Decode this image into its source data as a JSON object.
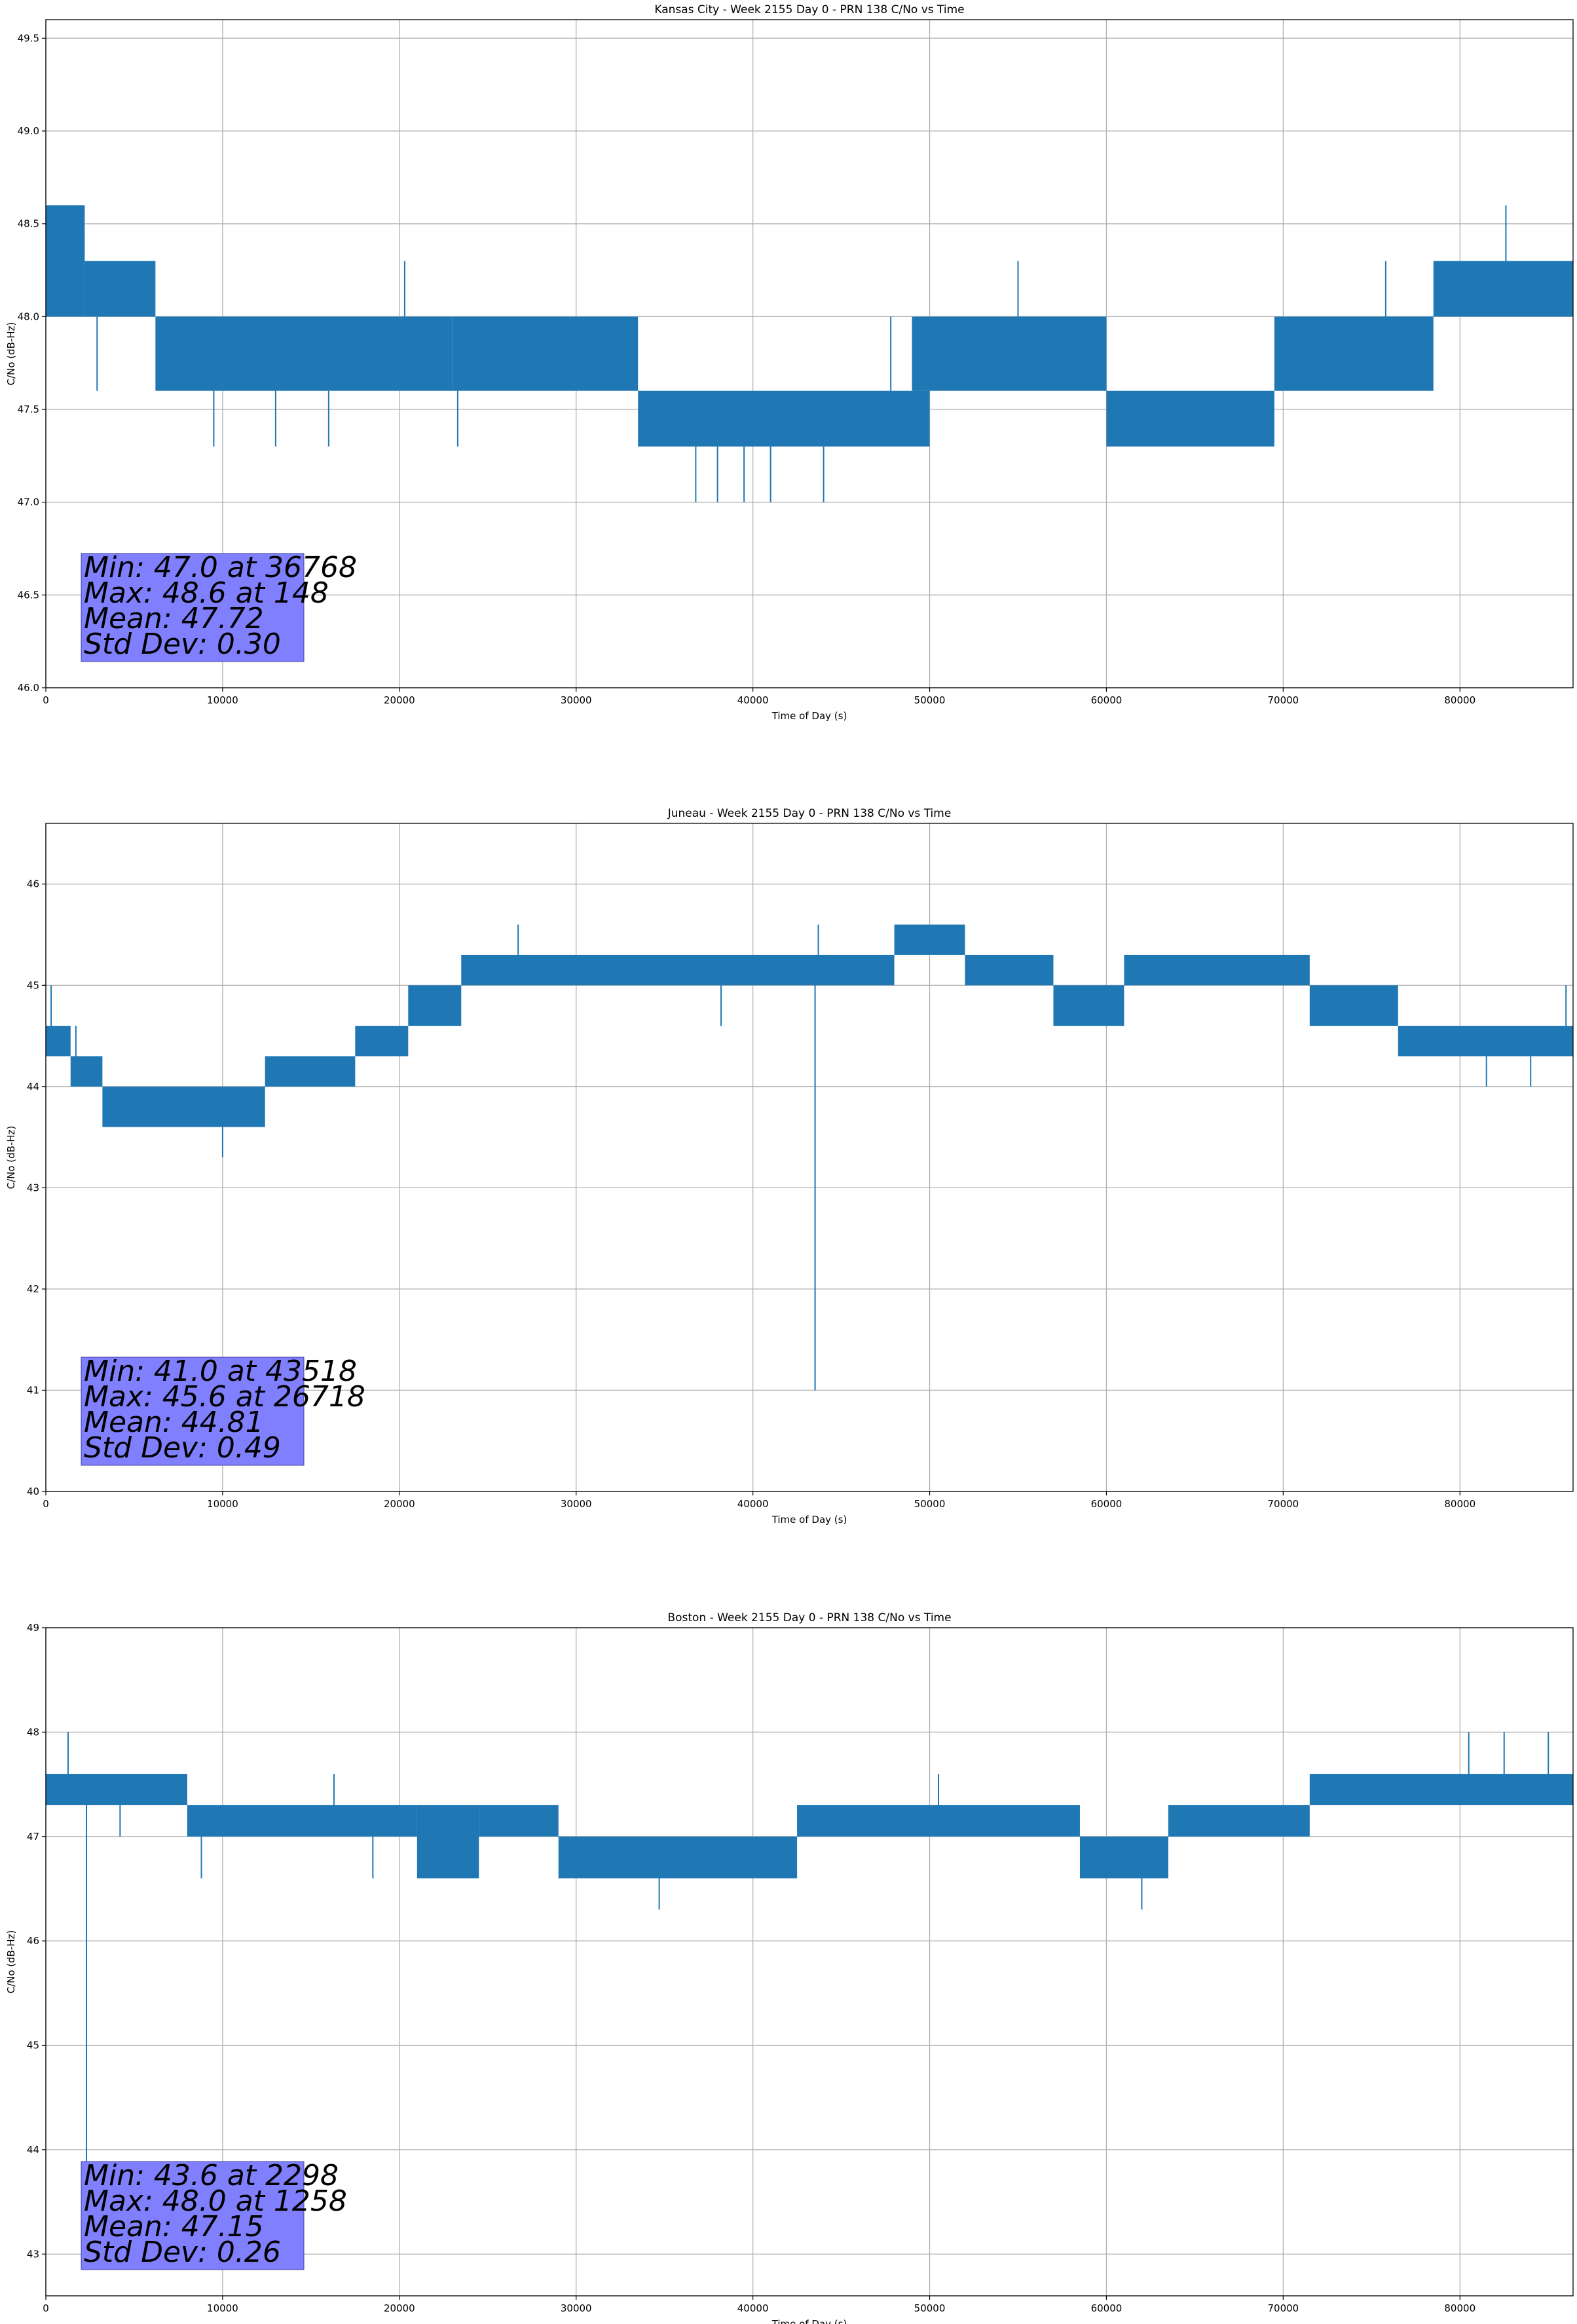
{
  "figure": {
    "colors": {
      "line": "#1f77b4",
      "stats_box": "#8080ff",
      "grid": "#b0b0b0",
      "background": "#ffffff"
    }
  },
  "chart_data": [
    {
      "type": "line",
      "title": "Kansas City - Week 2155 Day 0 - PRN 138 C/No vs Time",
      "xlabel": "Time of Day (s)",
      "ylabel": "C/No (dB-Hz)",
      "xlim": [
        0,
        86400
      ],
      "ylim": [
        46.0,
        49.6
      ],
      "xticks": [
        0,
        10000,
        20000,
        30000,
        40000,
        50000,
        60000,
        70000,
        80000
      ],
      "xtick_labels": [
        "0",
        "10000",
        "20000",
        "30000",
        "40000",
        "50000",
        "60000",
        "70000",
        "80000"
      ],
      "yticks": [
        46.0,
        46.5,
        47.0,
        47.5,
        48.0,
        48.5,
        49.0,
        49.5
      ],
      "ytick_labels": [
        "46.0",
        "46.5",
        "47.0",
        "47.5",
        "48.0",
        "48.5",
        "49.0",
        "49.5"
      ],
      "grid": true,
      "stats": [
        "Min: 47.0 at 36768",
        "Max: 48.6 at 148",
        "Mean: 47.72",
        "Std Dev: 0.30"
      ],
      "bands": [
        {
          "x": [
            0,
            2200
          ],
          "lo": 48.0,
          "hi": 48.6
        },
        {
          "x": [
            2200,
            6200
          ],
          "lo": 48.0,
          "hi": 48.3
        },
        {
          "x": [
            6200,
            23000
          ],
          "lo": 47.6,
          "hi": 48.0
        },
        {
          "x": [
            23000,
            33500
          ],
          "lo": 47.6,
          "hi": 48.0
        },
        {
          "x": [
            33500,
            50000
          ],
          "lo": 47.3,
          "hi": 47.6
        },
        {
          "x": [
            49000,
            60000
          ],
          "lo": 47.6,
          "hi": 48.0
        },
        {
          "x": [
            60000,
            69500
          ],
          "lo": 47.3,
          "hi": 47.6
        },
        {
          "x": [
            69500,
            78500
          ],
          "lo": 47.6,
          "hi": 48.0
        },
        {
          "x": [
            78500,
            86400
          ],
          "lo": 48.0,
          "hi": 48.3
        }
      ],
      "spikes": [
        {
          "x": 148,
          "lo": 48.0,
          "hi": 48.6
        },
        {
          "x": 2900,
          "lo": 47.6,
          "hi": 48.0
        },
        {
          "x": 9500,
          "lo": 47.3,
          "hi": 47.6
        },
        {
          "x": 13000,
          "lo": 47.3,
          "hi": 47.6
        },
        {
          "x": 16000,
          "lo": 47.3,
          "hi": 47.6
        },
        {
          "x": 20300,
          "lo": 48.0,
          "hi": 48.3
        },
        {
          "x": 23300,
          "lo": 47.3,
          "hi": 47.6
        },
        {
          "x": 36768,
          "lo": 47.0,
          "hi": 47.3
        },
        {
          "x": 38000,
          "lo": 47.0,
          "hi": 47.3
        },
        {
          "x": 39500,
          "lo": 47.0,
          "hi": 47.3
        },
        {
          "x": 41000,
          "lo": 47.0,
          "hi": 47.3
        },
        {
          "x": 44000,
          "lo": 47.0,
          "hi": 47.3
        },
        {
          "x": 47800,
          "lo": 47.6,
          "hi": 48.0
        },
        {
          "x": 55000,
          "lo": 48.0,
          "hi": 48.3
        },
        {
          "x": 75800,
          "lo": 48.0,
          "hi": 48.3
        },
        {
          "x": 82600,
          "lo": 48.3,
          "hi": 48.6
        }
      ]
    },
    {
      "type": "line",
      "title": "Juneau - Week 2155 Day 0 - PRN 138 C/No vs Time",
      "xlabel": "Time of Day (s)",
      "ylabel": "C/No (dB-Hz)",
      "xlim": [
        0,
        86400
      ],
      "ylim": [
        40,
        46.6
      ],
      "xticks": [
        0,
        10000,
        20000,
        30000,
        40000,
        50000,
        60000,
        70000,
        80000
      ],
      "xtick_labels": [
        "0",
        "10000",
        "20000",
        "30000",
        "40000",
        "50000",
        "60000",
        "70000",
        "80000"
      ],
      "yticks": [
        40,
        41,
        42,
        43,
        44,
        45,
        46
      ],
      "ytick_labels": [
        "40",
        "41",
        "42",
        "43",
        "44",
        "45",
        "46"
      ],
      "grid": true,
      "stats": [
        "Min: 41.0 at 43518",
        "Max: 45.6 at 26718",
        "Mean: 44.81",
        "Std Dev: 0.49"
      ],
      "bands": [
        {
          "x": [
            0,
            1400
          ],
          "lo": 44.3,
          "hi": 44.6
        },
        {
          "x": [
            1400,
            3200
          ],
          "lo": 44.0,
          "hi": 44.3
        },
        {
          "x": [
            3200,
            12400
          ],
          "lo": 43.6,
          "hi": 44.0
        },
        {
          "x": [
            12400,
            17500
          ],
          "lo": 44.0,
          "hi": 44.3
        },
        {
          "x": [
            17500,
            20500
          ],
          "lo": 44.3,
          "hi": 44.6
        },
        {
          "x": [
            20500,
            23500
          ],
          "lo": 44.6,
          "hi": 45.0
        },
        {
          "x": [
            23500,
            48000
          ],
          "lo": 45.0,
          "hi": 45.3
        },
        {
          "x": [
            48000,
            52000
          ],
          "lo": 45.3,
          "hi": 45.6
        },
        {
          "x": [
            52000,
            57000
          ],
          "lo": 45.0,
          "hi": 45.3
        },
        {
          "x": [
            57000,
            61000
          ],
          "lo": 44.6,
          "hi": 45.0
        },
        {
          "x": [
            61000,
            71500
          ],
          "lo": 45.0,
          "hi": 45.3
        },
        {
          "x": [
            71500,
            76500
          ],
          "lo": 44.6,
          "hi": 45.0
        },
        {
          "x": [
            76500,
            86400
          ],
          "lo": 44.3,
          "hi": 44.6
        }
      ],
      "spikes": [
        {
          "x": 300,
          "lo": 44.6,
          "hi": 45.0
        },
        {
          "x": 1700,
          "lo": 44.0,
          "hi": 44.6
        },
        {
          "x": 10000,
          "lo": 43.3,
          "hi": 43.6
        },
        {
          "x": 26718,
          "lo": 45.3,
          "hi": 45.6
        },
        {
          "x": 43518,
          "lo": 41.0,
          "hi": 45.0
        },
        {
          "x": 43700,
          "lo": 45.3,
          "hi": 45.6
        },
        {
          "x": 38200,
          "lo": 44.6,
          "hi": 45.0
        },
        {
          "x": 71800,
          "lo": 44.6,
          "hi": 45.0
        },
        {
          "x": 81500,
          "lo": 44.0,
          "hi": 44.3
        },
        {
          "x": 84000,
          "lo": 44.0,
          "hi": 44.3
        },
        {
          "x": 86000,
          "lo": 44.6,
          "hi": 45.0
        }
      ]
    },
    {
      "type": "line",
      "title": "Boston - Week 2155 Day 0 - PRN 138 C/No vs Time",
      "xlabel": "Time of Day (s)",
      "ylabel": "C/No (dB-Hz)",
      "xlim": [
        0,
        86400
      ],
      "ylim": [
        42.6,
        49
      ],
      "xticks": [
        0,
        10000,
        20000,
        30000,
        40000,
        50000,
        60000,
        70000,
        80000
      ],
      "xtick_labels": [
        "0",
        "10000",
        "20000",
        "30000",
        "40000",
        "50000",
        "60000",
        "70000",
        "80000"
      ],
      "yticks": [
        43,
        44,
        45,
        46,
        47,
        48,
        49
      ],
      "ytick_labels": [
        "43",
        "44",
        "45",
        "46",
        "47",
        "48",
        "49"
      ],
      "grid": true,
      "stats": [
        "Min: 43.6 at 2298",
        "Max: 48.0 at 1258",
        "Mean: 47.15",
        "Std Dev: 0.26"
      ],
      "bands": [
        {
          "x": [
            0,
            8000
          ],
          "lo": 47.3,
          "hi": 47.6
        },
        {
          "x": [
            8000,
            21000
          ],
          "lo": 47.0,
          "hi": 47.3
        },
        {
          "x": [
            21000,
            24500
          ],
          "lo": 46.6,
          "hi": 47.3
        },
        {
          "x": [
            24500,
            29000
          ],
          "lo": 47.0,
          "hi": 47.3
        },
        {
          "x": [
            29000,
            42500
          ],
          "lo": 46.6,
          "hi": 47.0
        },
        {
          "x": [
            42500,
            58500
          ],
          "lo": 47.0,
          "hi": 47.3
        },
        {
          "x": [
            58500,
            63500
          ],
          "lo": 46.6,
          "hi": 47.0
        },
        {
          "x": [
            63500,
            71500
          ],
          "lo": 47.0,
          "hi": 47.3
        },
        {
          "x": [
            71500,
            86400
          ],
          "lo": 47.3,
          "hi": 47.6
        }
      ],
      "spikes": [
        {
          "x": 1258,
          "lo": 47.6,
          "hi": 48.0
        },
        {
          "x": 2298,
          "lo": 43.6,
          "hi": 47.3
        },
        {
          "x": 4200,
          "lo": 47.0,
          "hi": 47.3
        },
        {
          "x": 8800,
          "lo": 46.6,
          "hi": 47.0
        },
        {
          "x": 16300,
          "lo": 47.3,
          "hi": 47.6
        },
        {
          "x": 18500,
          "lo": 46.6,
          "hi": 47.0
        },
        {
          "x": 34700,
          "lo": 46.3,
          "hi": 46.6
        },
        {
          "x": 50500,
          "lo": 47.3,
          "hi": 47.6
        },
        {
          "x": 62000,
          "lo": 46.3,
          "hi": 46.6
        },
        {
          "x": 80500,
          "lo": 47.6,
          "hi": 48.0
        },
        {
          "x": 82500,
          "lo": 47.6,
          "hi": 48.0
        },
        {
          "x": 85000,
          "lo": 47.6,
          "hi": 48.0
        }
      ]
    }
  ]
}
